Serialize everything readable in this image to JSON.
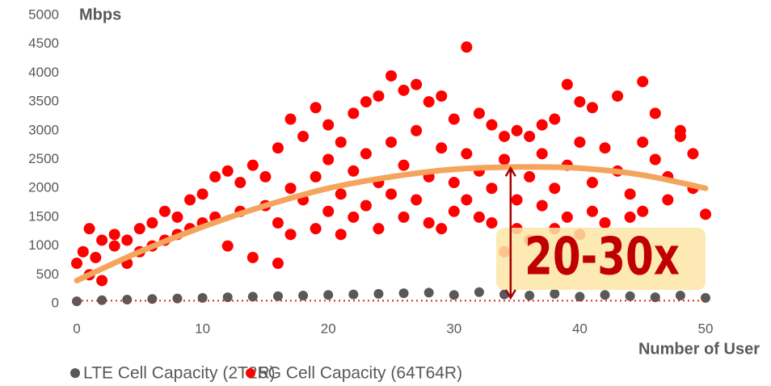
{
  "chart_data": {
    "type": "scatter",
    "ylabel": "Mbps",
    "xlabel": "Number of User",
    "xlim": [
      0,
      50
    ],
    "ylim": [
      0,
      5000
    ],
    "xticks": [
      0,
      10,
      20,
      30,
      40,
      50
    ],
    "yticks": [
      0,
      500,
      1000,
      1500,
      2000,
      2500,
      3000,
      3500,
      4000,
      4500,
      5000
    ],
    "series": [
      {
        "name": "LTE Cell Capacity (2T2R)",
        "color": "#595959",
        "x": [
          0,
          2,
          4,
          6,
          8,
          10,
          12,
          14,
          16,
          18,
          20,
          22,
          24,
          26,
          28,
          30,
          32,
          34,
          36,
          38,
          40,
          42,
          44,
          46,
          48,
          50
        ],
        "values": [
          40,
          60,
          70,
          80,
          90,
          100,
          110,
          120,
          130,
          140,
          150,
          160,
          170,
          180,
          190,
          150,
          200,
          160,
          140,
          170,
          120,
          150,
          130,
          110,
          140,
          100
        ]
      },
      {
        "name": "5G Cell Capacity (64T64R)",
        "color": "#ff0000",
        "x": [
          0,
          0.5,
          1,
          1,
          1.5,
          2,
          2,
          3,
          3,
          4,
          4,
          5,
          5,
          6,
          6,
          7,
          7,
          8,
          8,
          9,
          9,
          10,
          10,
          11,
          11,
          12,
          12,
          13,
          13,
          14,
          14,
          15,
          15,
          16,
          16,
          16,
          17,
          17,
          17,
          18,
          18,
          19,
          19,
          19,
          20,
          20,
          20,
          21,
          21,
          21,
          22,
          22,
          22,
          23,
          23,
          23,
          24,
          24,
          24,
          25,
          25,
          25,
          26,
          26,
          26,
          27,
          27,
          27,
          28,
          28,
          28,
          29,
          29,
          29,
          30,
          30,
          30,
          31,
          31,
          31,
          32,
          32,
          32,
          33,
          33,
          33,
          34,
          34,
          34,
          35,
          35,
          35,
          36,
          36,
          36,
          37,
          37,
          37,
          38,
          38,
          38,
          39,
          39,
          39,
          40,
          40,
          40,
          41,
          41,
          41,
          42,
          42,
          43,
          43,
          44,
          44,
          45,
          45,
          45,
          46,
          46,
          47,
          47,
          48,
          48,
          49,
          49,
          50
        ],
        "values": [
          700,
          900,
          1300,
          500,
          800,
          1100,
          400,
          1000,
          1200,
          700,
          1100,
          1300,
          900,
          1400,
          1000,
          1600,
          1100,
          1500,
          1200,
          1800,
          1300,
          1900,
          1400,
          2200,
          1500,
          2300,
          1000,
          2100,
          1600,
          2400,
          800,
          2200,
          1700,
          2700,
          1400,
          700,
          3200,
          2000,
          1200,
          2900,
          1800,
          3400,
          2200,
          1300,
          3100,
          2500,
          1600,
          2800,
          1900,
          1200,
          3300,
          2300,
          1500,
          3500,
          2600,
          1700,
          3600,
          2100,
          1300,
          3950,
          2800,
          1900,
          3700,
          2400,
          1500,
          3800,
          3000,
          1800,
          3500,
          2200,
          1400,
          3600,
          2700,
          1300,
          3200,
          2100,
          1600,
          4450,
          2600,
          1800,
          3300,
          2300,
          1500,
          3100,
          2000,
          1400,
          2900,
          2500,
          900,
          3000,
          1800,
          1300,
          2900,
          2200,
          1100,
          3100,
          2600,
          1700,
          3200,
          2000,
          1300,
          3800,
          2400,
          1500,
          3500,
          2800,
          1200,
          3400,
          2100,
          1600,
          2700,
          1400,
          3600,
          2300,
          1900,
          1500,
          3850,
          2800,
          1600,
          3300,
          2500,
          1800,
          2200,
          2900,
          3000,
          2600,
          2000,
          1550
        ]
      }
    ],
    "trendline": {
      "color": "#f5a45d",
      "x": [
        0,
        5,
        10,
        15,
        20,
        25,
        30,
        35,
        40,
        45,
        50
      ],
      "values": [
        400,
        900,
        1330,
        1700,
        2000,
        2200,
        2330,
        2370,
        2350,
        2230,
        2000
      ]
    },
    "reference_line": 50,
    "arrow": {
      "x": 34.5,
      "from": 100,
      "to": 2350
    },
    "annotation": "20-30x"
  }
}
